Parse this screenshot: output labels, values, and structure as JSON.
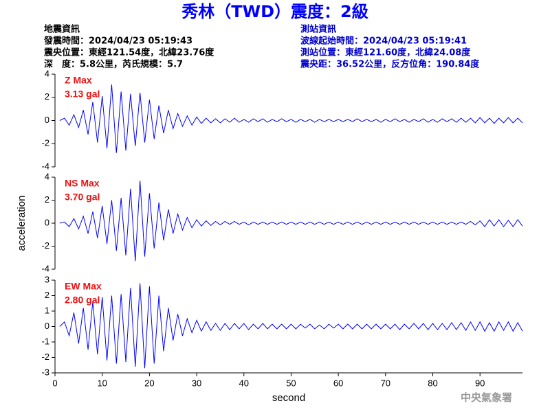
{
  "header": {
    "title": "秀林（TWD）震度：2級",
    "left": [
      "地震資訊",
      "發震時間：2024/04/23 05:19:43",
      "震央位置：東經121.54度，北緯23.76度",
      "深　度：5.8公里，芮氏規模：5.7"
    ],
    "right": [
      "測站資訊",
      "波線起始時間：2024/04/23 05:19:41",
      "測站位置：東經121.60度，北緯24.08度",
      "震央距：36.52公里，反方位角：190.84度"
    ],
    "ylabel": "acceleration",
    "footer": "中央氣象署"
  },
  "chart_data": [
    {
      "type": "line",
      "annotation": [
        "Z Max",
        "3.13 gal"
      ],
      "color": "#0000ff",
      "xlim": [
        0,
        99
      ],
      "ylim": [
        -4,
        4
      ],
      "yticks": [
        -4,
        -2,
        0,
        2,
        4
      ],
      "x": [
        1,
        2,
        3,
        4,
        5,
        6,
        7,
        8,
        9,
        10,
        11,
        12,
        13,
        14,
        15,
        16,
        17,
        18,
        19,
        20,
        21,
        22,
        23,
        24,
        25,
        26,
        27,
        28,
        29,
        30,
        31,
        32,
        33,
        34,
        35,
        36,
        37,
        38,
        39,
        40,
        41,
        42,
        43,
        44,
        45,
        46,
        47,
        48,
        49,
        50,
        51,
        52,
        53,
        54,
        55,
        56,
        57,
        58,
        59,
        60,
        61,
        62,
        63,
        64,
        65,
        66,
        67,
        68,
        69,
        70,
        71,
        72,
        73,
        74,
        75,
        76,
        77,
        78,
        79,
        80,
        81,
        82,
        83,
        84,
        85,
        86,
        87,
        88,
        89,
        90,
        91,
        92,
        93,
        94,
        95,
        96,
        97,
        98,
        99
      ],
      "values": [
        0,
        0.2,
        -0.4,
        0.5,
        -0.6,
        0.9,
        -1.2,
        1.6,
        -1.9,
        2.1,
        -2.4,
        3.1,
        -2.8,
        2.5,
        -2.6,
        2.3,
        -2.2,
        2.4,
        -1.9,
        1.8,
        -1.6,
        1.3,
        -1.1,
        0.9,
        -0.7,
        0.6,
        -0.5,
        0.4,
        -0.4,
        0.3,
        -0.25,
        0.2,
        -0.2,
        0.15,
        -0.2,
        0.15,
        -0.15,
        0.2,
        -0.15,
        0.1,
        -0.15,
        0.15,
        -0.1,
        0.15,
        -0.15,
        0.1,
        -0.1,
        0.15,
        -0.1,
        0.1,
        -0.15,
        0.1,
        -0.1,
        0.1,
        -0.15,
        0.1,
        -0.1,
        0.1,
        -0.1,
        0.1,
        -0.1,
        0.1,
        -0.1,
        0.15,
        -0.1,
        0.1,
        -0.1,
        0.1,
        -0.15,
        0.1,
        -0.1,
        0.15,
        -0.1,
        0.1,
        -0.15,
        0.1,
        -0.1,
        0.15,
        -0.15,
        0.1,
        -0.15,
        0.15,
        -0.1,
        0.15,
        -0.15,
        0.2,
        -0.15,
        0.2,
        -0.2,
        0.25,
        -0.2,
        0.2,
        -0.25,
        0.2,
        -0.2,
        0.25,
        -0.2,
        0.2,
        -0.2
      ]
    },
    {
      "type": "line",
      "annotation": [
        "NS Max",
        "3.70 gal"
      ],
      "color": "#0000ff",
      "xlim": [
        0,
        99
      ],
      "ylim": [
        -4,
        4
      ],
      "yticks": [
        -4,
        -2,
        0,
        2,
        4
      ],
      "x": [
        1,
        2,
        3,
        4,
        5,
        6,
        7,
        8,
        9,
        10,
        11,
        12,
        13,
        14,
        15,
        16,
        17,
        18,
        19,
        20,
        21,
        22,
        23,
        24,
        25,
        26,
        27,
        28,
        29,
        30,
        31,
        32,
        33,
        34,
        35,
        36,
        37,
        38,
        39,
        40,
        41,
        42,
        43,
        44,
        45,
        46,
        47,
        48,
        49,
        50,
        51,
        52,
        53,
        54,
        55,
        56,
        57,
        58,
        59,
        60,
        61,
        62,
        63,
        64,
        65,
        66,
        67,
        68,
        69,
        70,
        71,
        72,
        73,
        74,
        75,
        76,
        77,
        78,
        79,
        80,
        81,
        82,
        83,
        84,
        85,
        86,
        87,
        88,
        89,
        90,
        91,
        92,
        93,
        94,
        95,
        96,
        97,
        98,
        99
      ],
      "values": [
        0,
        0.1,
        -0.3,
        0.4,
        -0.5,
        0.6,
        -0.9,
        1.0,
        -1.3,
        1.5,
        -1.8,
        2.0,
        -2.4,
        2.2,
        -2.8,
        3.0,
        -3.3,
        3.7,
        -2.9,
        2.6,
        -2.2,
        1.8,
        -1.5,
        1.2,
        -0.9,
        0.8,
        -0.6,
        0.5,
        -0.4,
        0.3,
        -0.25,
        0.2,
        -0.2,
        0.15,
        -0.15,
        0.15,
        -0.1,
        0.15,
        -0.1,
        0.1,
        -0.15,
        0.1,
        -0.1,
        0.1,
        -0.1,
        0.1,
        -0.1,
        0.1,
        -0.1,
        0.1,
        -0.1,
        0.1,
        -0.1,
        0.1,
        -0.1,
        0.1,
        -0.1,
        0.1,
        -0.1,
        0.1,
        -0.1,
        0.1,
        -0.1,
        0.1,
        -0.1,
        0.1,
        -0.1,
        0.1,
        -0.1,
        0.1,
        -0.1,
        0.1,
        -0.1,
        0.1,
        -0.1,
        0.1,
        -0.1,
        0.1,
        -0.1,
        0.1,
        -0.1,
        0.1,
        -0.1,
        0.1,
        -0.1,
        0.1,
        -0.1,
        0.15,
        -0.15,
        0.2,
        -0.3,
        0.3,
        -0.25,
        0.3,
        -0.3,
        0.25,
        -0.3,
        0.3,
        -0.25
      ]
    },
    {
      "type": "line",
      "annotation": [
        "EW Max",
        "2.80 gal"
      ],
      "color": "#0000ff",
      "xlabel": "second",
      "xlim": [
        0,
        99
      ],
      "ylim": [
        -3,
        3
      ],
      "yticks": [
        -3,
        -2,
        -1,
        0,
        1,
        2,
        3
      ],
      "xticks": [
        0,
        10,
        20,
        30,
        40,
        50,
        60,
        70,
        80,
        90
      ],
      "x": [
        1,
        2,
        3,
        4,
        5,
        6,
        7,
        8,
        9,
        10,
        11,
        12,
        13,
        14,
        15,
        16,
        17,
        18,
        19,
        20,
        21,
        22,
        23,
        24,
        25,
        26,
        27,
        28,
        29,
        30,
        31,
        32,
        33,
        34,
        35,
        36,
        37,
        38,
        39,
        40,
        41,
        42,
        43,
        44,
        45,
        46,
        47,
        48,
        49,
        50,
        51,
        52,
        53,
        54,
        55,
        56,
        57,
        58,
        59,
        60,
        61,
        62,
        63,
        64,
        65,
        66,
        67,
        68,
        69,
        70,
        71,
        72,
        73,
        74,
        75,
        76,
        77,
        78,
        79,
        80,
        81,
        82,
        83,
        84,
        85,
        86,
        87,
        88,
        89,
        90,
        91,
        92,
        93,
        94,
        95,
        96,
        97,
        98,
        99
      ],
      "values": [
        0,
        0.3,
        -0.6,
        0.9,
        -1.1,
        1.2,
        -1.5,
        1.6,
        -1.8,
        1.9,
        -2.2,
        2.0,
        -2.4,
        2.1,
        -2.3,
        2.5,
        -2.6,
        2.8,
        -2.7,
        2.6,
        -2.4,
        2.0,
        -1.6,
        1.2,
        -0.9,
        0.8,
        -0.6,
        0.5,
        -0.4,
        0.4,
        -0.3,
        0.3,
        -0.25,
        0.2,
        -0.25,
        0.2,
        -0.2,
        0.2,
        -0.15,
        0.2,
        -0.2,
        0.15,
        -0.15,
        0.2,
        -0.15,
        0.15,
        -0.15,
        0.15,
        -0.15,
        0.15,
        -0.15,
        0.15,
        -0.1,
        0.15,
        -0.15,
        0.1,
        -0.15,
        0.15,
        -0.1,
        0.15,
        -0.15,
        0.15,
        -0.15,
        0.15,
        -0.15,
        0.15,
        -0.15,
        0.15,
        -0.15,
        0.15,
        -0.15,
        0.15,
        -0.2,
        0.15,
        -0.15,
        0.2,
        -0.15,
        0.2,
        -0.2,
        0.2,
        -0.2,
        0.2,
        -0.2,
        0.25,
        -0.2,
        0.25,
        -0.25,
        0.3,
        -0.25,
        0.3,
        -0.3,
        0.25,
        -0.3,
        0.3,
        -0.25,
        0.3,
        -0.3,
        0.25,
        -0.3
      ]
    }
  ]
}
